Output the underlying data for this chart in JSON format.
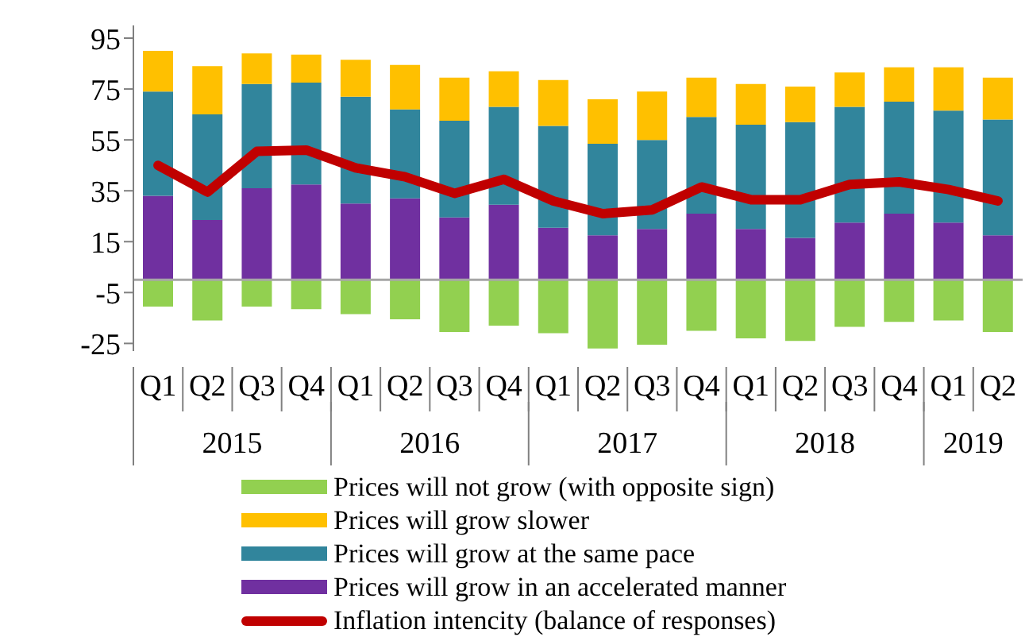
{
  "chart_data": {
    "type": "bar",
    "stacked": true,
    "categories": [
      "Q1",
      "Q2",
      "Q3",
      "Q4",
      "Q1",
      "Q2",
      "Q3",
      "Q4",
      "Q1",
      "Q2",
      "Q3",
      "Q4",
      "Q1",
      "Q2",
      "Q3",
      "Q4",
      "Q1",
      "Q2"
    ],
    "annotations": [
      "2015",
      "2016",
      "2017",
      "2018",
      "2019"
    ],
    "series": [
      {
        "name": "Prices will grow  in an accelerated manner",
        "color": "#7030a0",
        "values": [
          33,
          23.5,
          36,
          37.5,
          30,
          32,
          24.5,
          29.5,
          20.5,
          17.5,
          20,
          26,
          20,
          16.5,
          22.5,
          26,
          22.5,
          17.5
        ]
      },
      {
        "name": "Prices will grow at the same pace",
        "color": "#31859c",
        "values": [
          41,
          41.5,
          41,
          40,
          42,
          35,
          38,
          38.5,
          40,
          36,
          35,
          38,
          41,
          45.5,
          45.5,
          44,
          44,
          45.5
        ]
      },
      {
        "name": "Prices will grow slower",
        "color": "#ffc000",
        "values": [
          16,
          19,
          12,
          11,
          14.5,
          17.5,
          17,
          14,
          18,
          17.5,
          19,
          15.5,
          16,
          14,
          13.5,
          13.5,
          17,
          16.5
        ]
      },
      {
        "name": "Prices will not grow (with opposite sign)",
        "color": "#92d050",
        "values": [
          -10.5,
          -16,
          -10.5,
          -11.5,
          -13.5,
          -15.5,
          -20.5,
          -18,
          -21,
          -27,
          -25.5,
          -20,
          -23,
          -24,
          -18.5,
          -16.5,
          -16,
          -20.5
        ]
      },
      {
        "name": "Inflation intencity (balance of responses)",
        "type": "line",
        "color": "#c00000",
        "marker": "none",
        "values": [
          45,
          34.5,
          50.5,
          51,
          44,
          40.5,
          34,
          39.5,
          31,
          26,
          27.5,
          36.5,
          31.5,
          31.5,
          37.5,
          38.5,
          35.5,
          31
        ]
      }
    ],
    "ylim": [
      -28,
      100
    ],
    "yticks": [
      95,
      75,
      55,
      35,
      15,
      -5,
      -25
    ],
    "ref_lines": [
      {
        "axis": "y",
        "value": 0,
        "color": "#a6a6a6"
      }
    ],
    "grid": false,
    "legend": "bottom"
  }
}
